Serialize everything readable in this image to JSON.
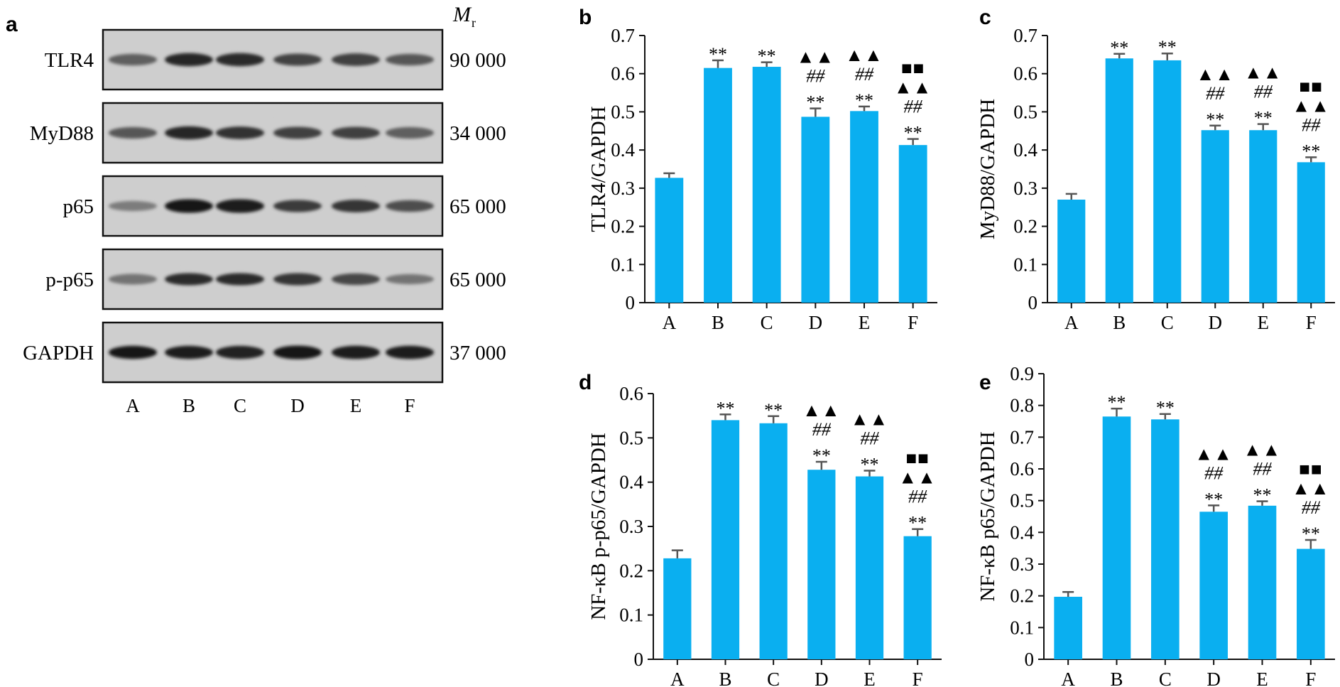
{
  "panel_a": {
    "letter": "a",
    "mr_label": "M",
    "mr_sub": "r",
    "lane_labels": [
      "A",
      "B",
      "C",
      "D",
      "E",
      "F"
    ],
    "blots": [
      {
        "name": "TLR4",
        "mw": "90 000",
        "intensity": [
          0.55,
          0.85,
          0.82,
          0.7,
          0.72,
          0.6
        ],
        "thick": [
          0.45,
          0.6,
          0.6,
          0.5,
          0.55,
          0.45
        ]
      },
      {
        "name": "MyD88",
        "mw": "34 000",
        "intensity": [
          0.6,
          0.85,
          0.8,
          0.72,
          0.72,
          0.55
        ],
        "thick": [
          0.45,
          0.6,
          0.55,
          0.5,
          0.5,
          0.45
        ]
      },
      {
        "name": "p65",
        "mw": "65 000",
        "intensity": [
          0.4,
          0.92,
          0.9,
          0.75,
          0.78,
          0.65
        ],
        "thick": [
          0.3,
          0.65,
          0.65,
          0.5,
          0.55,
          0.45
        ]
      },
      {
        "name": "p-p65",
        "mw": "65 000",
        "intensity": [
          0.45,
          0.82,
          0.82,
          0.78,
          0.68,
          0.45
        ],
        "thick": [
          0.35,
          0.5,
          0.5,
          0.5,
          0.45,
          0.3
        ]
      },
      {
        "name": "GAPDH",
        "mw": "37 000",
        "intensity": [
          0.92,
          0.9,
          0.88,
          0.92,
          0.9,
          0.9
        ],
        "thick": [
          0.6,
          0.6,
          0.6,
          0.65,
          0.62,
          0.62
        ]
      }
    ]
  },
  "chart_data": [
    {
      "id": "b",
      "letter": "b",
      "type": "bar",
      "ylabel": "TLR4/GAPDH",
      "ylim": [
        0,
        0.7
      ],
      "yticks": [
        "0",
        "0.1",
        "0.2",
        "0.3",
        "0.4",
        "0.5",
        "0.6",
        "0.7"
      ],
      "categories": [
        "A",
        "B",
        "C",
        "D",
        "E",
        "F"
      ],
      "values": [
        0.327,
        0.615,
        0.618,
        0.487,
        0.502,
        0.413
      ],
      "errors": [
        0.012,
        0.02,
        0.012,
        0.022,
        0.012,
        0.016
      ],
      "annotations": [
        [],
        [
          "**"
        ],
        [
          "**"
        ],
        [
          "▲▲",
          "##",
          "**"
        ],
        [
          "▲▲",
          "##",
          "**"
        ],
        [
          "■■",
          "▲▲",
          "##",
          "**"
        ]
      ],
      "bar_color": "#0aaff0"
    },
    {
      "id": "c",
      "letter": "c",
      "type": "bar",
      "ylabel": "MyD88/GAPDH",
      "ylim": [
        0,
        0.7
      ],
      "yticks": [
        "0",
        "0.1",
        "0.2",
        "0.3",
        "0.4",
        "0.5",
        "0.6",
        "0.7"
      ],
      "categories": [
        "A",
        "B",
        "C",
        "D",
        "E",
        "F"
      ],
      "values": [
        0.27,
        0.64,
        0.635,
        0.452,
        0.452,
        0.368
      ],
      "errors": [
        0.015,
        0.012,
        0.018,
        0.012,
        0.016,
        0.013
      ],
      "annotations": [
        [],
        [
          "**"
        ],
        [
          "**"
        ],
        [
          "▲▲",
          "##",
          "**"
        ],
        [
          "▲▲",
          "##",
          "**"
        ],
        [
          "■■",
          "▲▲",
          "##",
          "**"
        ]
      ],
      "bar_color": "#0aaff0"
    },
    {
      "id": "d",
      "letter": "d",
      "type": "bar",
      "ylabel": "NF-κB p-p65/GAPDH",
      "ylim": [
        0,
        0.6
      ],
      "yticks": [
        "0",
        "0.1",
        "0.2",
        "0.3",
        "0.4",
        "0.5",
        "0.6"
      ],
      "categories": [
        "A",
        "B",
        "C",
        "D",
        "E",
        "F"
      ],
      "values": [
        0.228,
        0.54,
        0.533,
        0.428,
        0.413,
        0.278
      ],
      "errors": [
        0.018,
        0.013,
        0.016,
        0.018,
        0.013,
        0.016
      ],
      "annotations": [
        [],
        [
          "**"
        ],
        [
          "**"
        ],
        [
          "▲▲",
          "##",
          "**"
        ],
        [
          "▲▲",
          "##",
          "**"
        ],
        [
          "■■",
          "▲▲",
          "##",
          "**"
        ]
      ],
      "bar_color": "#0aaff0"
    },
    {
      "id": "e",
      "letter": "e",
      "type": "bar",
      "ylabel": "NF-κB p65/GAPDH",
      "ylim": [
        0,
        0.9
      ],
      "yticks": [
        "0",
        "0.1",
        "0.2",
        "0.3",
        "0.4",
        "0.5",
        "0.6",
        "0.7",
        "0.8",
        "0.9"
      ],
      "categories": [
        "A",
        "B",
        "C",
        "D",
        "E",
        "F"
      ],
      "values": [
        0.197,
        0.765,
        0.756,
        0.465,
        0.484,
        0.348
      ],
      "errors": [
        0.015,
        0.025,
        0.017,
        0.02,
        0.014,
        0.028
      ],
      "annotations": [
        [],
        [
          "**"
        ],
        [
          "**"
        ],
        [
          "▲▲",
          "##",
          "**"
        ],
        [
          "▲▲",
          "##",
          "**"
        ],
        [
          "■■",
          "▲▲",
          "##",
          "**"
        ]
      ],
      "bar_color": "#0aaff0"
    }
  ]
}
